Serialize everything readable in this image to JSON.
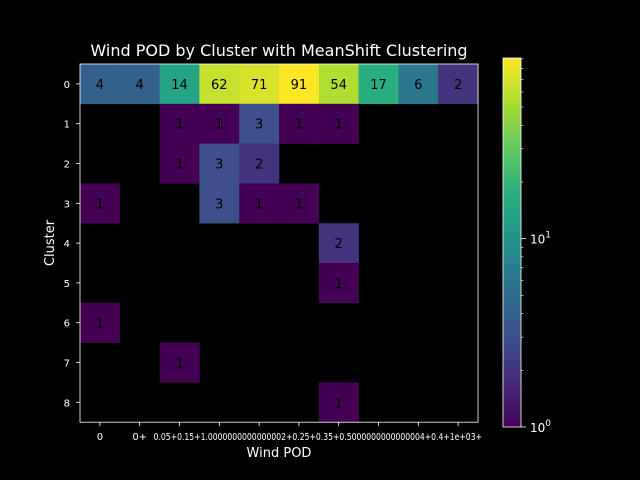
{
  "chart_data": {
    "type": "heatmap",
    "title": "Wind POD by Cluster with MeanShift Clustering",
    "xlabel": "Wind POD",
    "ylabel": "Cluster",
    "x_categories": [
      "0",
      "0+",
      "0.05+",
      "0.15+",
      "1.0000000000000002+",
      "0.25+",
      "0.35+",
      "0.5000000000000004+",
      "0.4+",
      "1e+03+"
    ],
    "x_tick_labels_shown": [
      "0",
      "0+",
      "0.05+0.15+1.0000000000000002+0.25+0.35+0.5000000000000004+0.4+1e+03+"
    ],
    "y_categories": [
      "0",
      "1",
      "2",
      "3",
      "4",
      "5",
      "6",
      "7",
      "8"
    ],
    "values": [
      [
        4,
        4,
        14,
        62,
        71,
        91,
        54,
        17,
        6,
        2
      ],
      [
        null,
        null,
        1,
        1,
        3,
        1,
        1,
        null,
        null,
        null
      ],
      [
        null,
        null,
        1,
        3,
        2,
        null,
        null,
        null,
        null,
        null
      ],
      [
        1,
        null,
        null,
        3,
        1,
        1,
        null,
        null,
        null,
        null
      ],
      [
        null,
        null,
        null,
        null,
        null,
        null,
        2,
        null,
        null,
        null
      ],
      [
        null,
        null,
        null,
        null,
        null,
        null,
        1,
        null,
        null,
        null
      ],
      [
        1,
        null,
        null,
        null,
        null,
        null,
        null,
        null,
        null,
        null
      ],
      [
        null,
        null,
        1,
        null,
        null,
        null,
        null,
        null,
        null,
        null
      ],
      [
        null,
        null,
        null,
        null,
        null,
        null,
        1,
        null,
        null,
        null
      ]
    ],
    "colormap": "viridis",
    "color_scale": "log",
    "color_range": [
      1,
      91
    ],
    "colorbar_ticks": [
      {
        "value": 1,
        "label": "10",
        "exp": "0"
      },
      {
        "value": 10,
        "label": "10",
        "exp": "1"
      }
    ],
    "background": "#000000",
    "text_color": "#ffffff",
    "cell_text_color": "#000000"
  }
}
